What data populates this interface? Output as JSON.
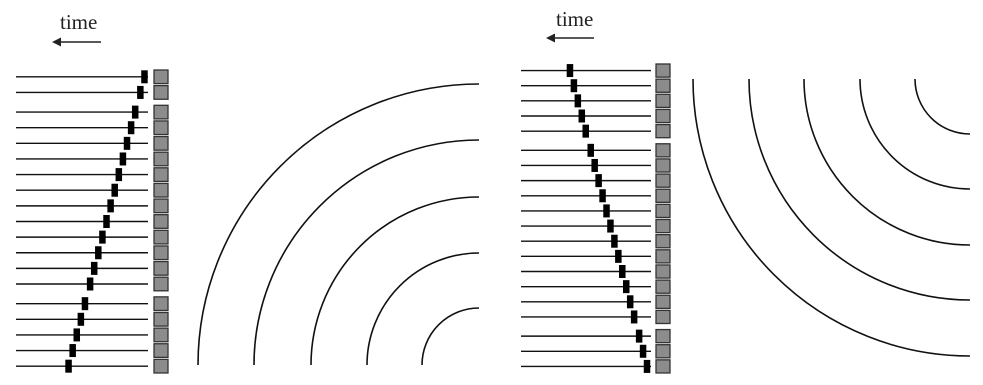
{
  "panels": [
    {
      "id": "left",
      "time_label": "time",
      "element_count": 19,
      "gap_after": [
        1,
        13
      ],
      "delay_direction": "increasing-downward",
      "wavefront_count": 5,
      "wavefront_shape": "concentric arcs converging to a focus at the bottom"
    },
    {
      "id": "right",
      "time_label": "time",
      "element_count": 20,
      "gap_after": [
        4,
        16
      ],
      "delay_direction": "increasing-upward",
      "wavefront_count": 5,
      "wavefront_shape": "concentric arcs converging to a focus at the top"
    }
  ],
  "colors": {
    "ink": "#111111",
    "element_fill": "#8c8c8c",
    "element_stroke": "#333333",
    "pulse": "#000000"
  },
  "icons": [
    "left-arrow-icon"
  ]
}
